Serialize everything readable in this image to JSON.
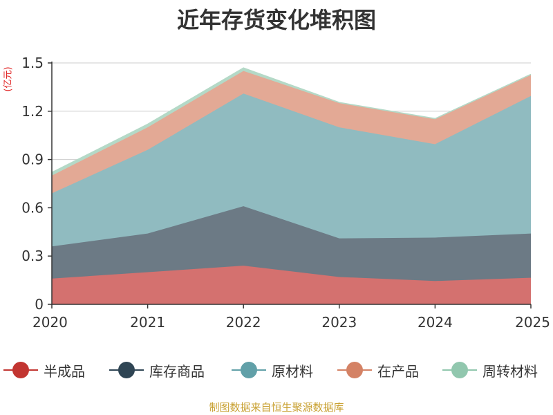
{
  "chart_data": {
    "type": "area",
    "stacked": true,
    "title": "近年存货变化堆积图",
    "unit": "(亿元)",
    "x": [
      "2020",
      "2021",
      "2022",
      "2023",
      "2024",
      "2025"
    ],
    "y_ticks": [
      "0",
      "0.3",
      "0.6",
      "0.9",
      "1.2",
      "1.5"
    ],
    "ylim": [
      0,
      1.5
    ],
    "grid": true,
    "legend_position": "bottom",
    "series": [
      {
        "name": "半成品",
        "values": [
          0.16,
          0.2,
          0.24,
          0.17,
          0.145,
          0.165
        ],
        "color": "#c23531",
        "fill": "#d4716f"
      },
      {
        "name": "库存商品",
        "values": [
          0.2,
          0.24,
          0.37,
          0.24,
          0.27,
          0.275
        ],
        "color": "#2f4554",
        "fill": "#6c7a85"
      },
      {
        "name": "原材料",
        "values": [
          0.33,
          0.52,
          0.7,
          0.69,
          0.58,
          0.855
        ],
        "color": "#61a0a8",
        "fill": "#90bbc0"
      },
      {
        "name": "在产品",
        "values": [
          0.11,
          0.14,
          0.14,
          0.15,
          0.155,
          0.13
        ],
        "color": "#d48265",
        "fill": "#e3a995"
      },
      {
        "name": "周转材料",
        "values": [
          0.02,
          0.02,
          0.02,
          0.005,
          0.005,
          0.005
        ],
        "color": "#91c7ae",
        "fill": "#b4d9c7"
      }
    ]
  },
  "footer": {
    "source": "制图数据来自恒生聚源数据库"
  }
}
